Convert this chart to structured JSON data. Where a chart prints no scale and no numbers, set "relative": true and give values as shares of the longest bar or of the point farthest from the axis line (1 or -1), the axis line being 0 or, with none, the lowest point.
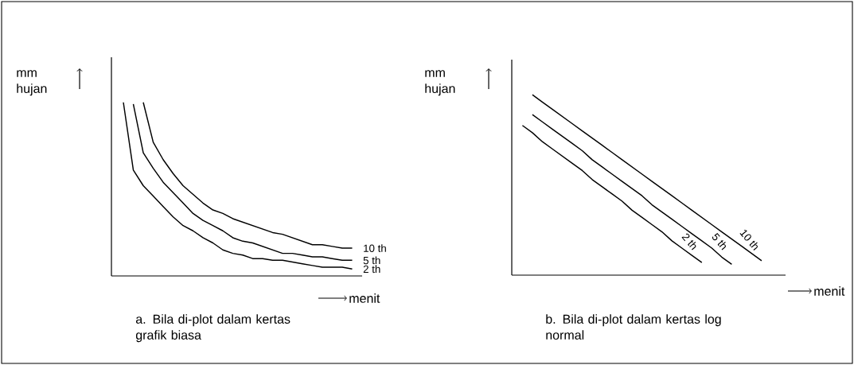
{
  "chart_data": [
    {
      "type": "line",
      "relative": true,
      "title": "a. Bila di-plot dalam kertas grafik biasa",
      "xlabel": "menit",
      "ylabel": "mm hujan",
      "legend": false,
      "categories": [
        null,
        null,
        null,
        null,
        null,
        null,
        null,
        null,
        null,
        null,
        null,
        null,
        null,
        null,
        null,
        null,
        null,
        null,
        null,
        null,
        null,
        null,
        null,
        null
      ],
      "series": [
        {
          "name": "10 th",
          "color": "#000000",
          "values": [
            null,
            null,
            1.0,
            0.77,
            0.67,
            0.59,
            0.52,
            0.47,
            0.42,
            0.38,
            0.36,
            0.33,
            0.31,
            0.29,
            0.27,
            0.25,
            0.24,
            0.22,
            0.2,
            0.18,
            0.18,
            0.17,
            0.16,
            0.16
          ]
        },
        {
          "name": "5 th",
          "color": "#000000",
          "values": [
            null,
            0.99,
            0.71,
            0.62,
            0.54,
            0.48,
            0.42,
            0.36,
            0.32,
            0.29,
            0.26,
            0.22,
            0.2,
            0.19,
            0.17,
            0.15,
            0.13,
            0.13,
            0.12,
            0.11,
            0.11,
            0.1,
            0.09,
            0.09
          ]
        },
        {
          "name": "2 th",
          "color": "#000000",
          "values": [
            1.0,
            0.61,
            0.52,
            0.46,
            0.4,
            0.34,
            0.29,
            0.26,
            0.22,
            0.19,
            0.15,
            0.13,
            0.12,
            0.1,
            0.1,
            0.09,
            0.09,
            0.08,
            0.07,
            0.06,
            0.05,
            0.05,
            0.05,
            0.04
          ]
        }
      ]
    },
    {
      "type": "line",
      "relative": true,
      "title": "b. Bila di-plot dalam kertas log normal",
      "xlabel": "menit",
      "ylabel": "mm hujan",
      "legend": false,
      "categories": [
        null,
        null,
        null,
        null,
        null,
        null,
        null,
        null,
        null,
        null,
        null,
        null,
        null,
        null,
        null,
        null,
        null,
        null,
        null,
        null,
        null,
        null,
        null,
        null,
        null
      ],
      "series": [
        {
          "name": "10 th",
          "color": "#000000",
          "values": [
            null,
            1.0,
            0.96,
            0.92,
            0.88,
            0.84,
            0.8,
            0.76,
            0.72,
            0.68,
            0.64,
            0.6,
            0.56,
            0.52,
            0.48,
            0.44,
            0.4,
            0.36,
            0.32,
            0.28,
            0.24,
            0.2,
            0.16,
            0.12,
            0.08
          ]
        },
        {
          "name": "5 th",
          "color": "#000000",
          "values": [
            null,
            0.89,
            0.85,
            0.81,
            0.77,
            0.73,
            0.69,
            0.64,
            0.6,
            0.56,
            0.52,
            0.48,
            0.44,
            0.39,
            0.35,
            0.31,
            0.27,
            0.23,
            0.19,
            0.15,
            0.1,
            0.06,
            null,
            null,
            null
          ]
        },
        {
          "name": "2 th",
          "color": "#000000",
          "values": [
            0.83,
            0.79,
            0.74,
            0.7,
            0.66,
            0.62,
            0.58,
            0.53,
            0.49,
            0.45,
            0.41,
            0.36,
            0.32,
            0.28,
            0.24,
            0.19,
            0.15,
            0.11,
            0.07,
            null,
            null,
            null,
            null,
            null,
            null
          ]
        }
      ]
    }
  ]
}
